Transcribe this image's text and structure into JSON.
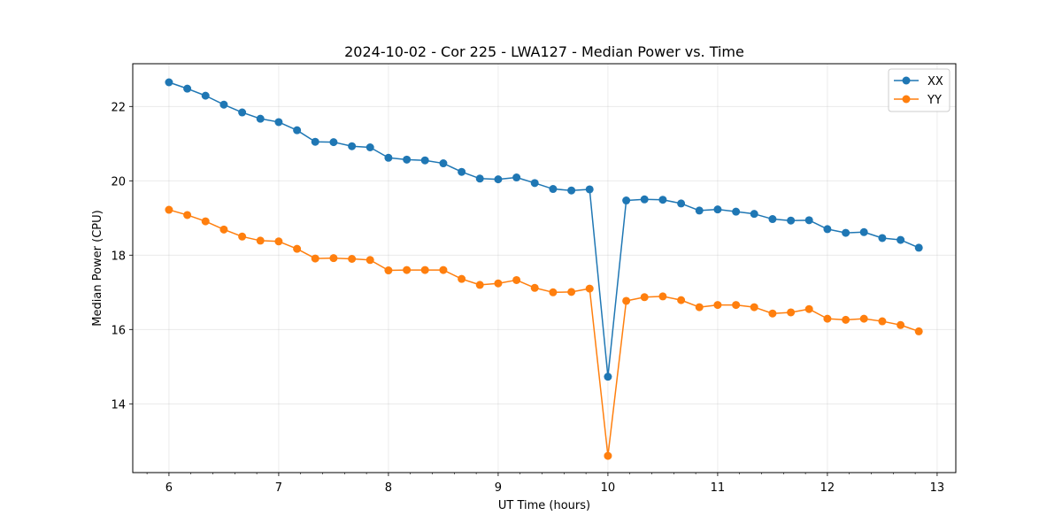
{
  "chart_data": {
    "type": "line",
    "title": "2024-10-02 - Cor 225 - LWA127 - Median Power vs. Time",
    "xlabel": "UT Time (hours)",
    "ylabel": "Median Power (CPU)",
    "xlim": [
      5.67,
      13.17
    ],
    "ylim": [
      12.15,
      23.15
    ],
    "xticks": [
      6,
      7,
      8,
      9,
      10,
      11,
      12,
      13
    ],
    "xtick_labels": [
      "6",
      "7",
      "8",
      "9",
      "10",
      "11",
      "12",
      "13"
    ],
    "yticks": [
      14,
      16,
      18,
      20,
      22
    ],
    "ytick_labels": [
      "14",
      "16",
      "18",
      "20",
      "22"
    ],
    "minor_xtick_step": 0.2,
    "grid": true,
    "legend_position": "top-right",
    "x": [
      6.0,
      6.167,
      6.333,
      6.5,
      6.667,
      6.833,
      7.0,
      7.167,
      7.333,
      7.5,
      7.667,
      7.833,
      8.0,
      8.167,
      8.333,
      8.5,
      8.667,
      8.833,
      9.0,
      9.167,
      9.333,
      9.5,
      9.667,
      9.833,
      10.0,
      10.167,
      10.333,
      10.5,
      10.667,
      10.833,
      11.0,
      11.167,
      11.333,
      11.5,
      11.667,
      11.833,
      12.0,
      12.167,
      12.333,
      12.5,
      12.667,
      12.833
    ],
    "series": [
      {
        "name": "XX",
        "color": "#1f77b4",
        "values": [
          22.65,
          22.48,
          22.29,
          22.05,
          21.84,
          21.67,
          21.58,
          21.36,
          21.05,
          21.04,
          20.93,
          20.9,
          20.62,
          20.57,
          20.55,
          20.47,
          20.24,
          20.06,
          20.04,
          20.09,
          19.94,
          19.78,
          19.74,
          19.77,
          14.73,
          19.47,
          19.5,
          19.49,
          19.39,
          19.2,
          19.23,
          19.17,
          19.11,
          18.97,
          18.93,
          18.94,
          18.7,
          18.6,
          18.62,
          18.46,
          18.41,
          18.2
        ]
      },
      {
        "name": "YY",
        "color": "#ff7f0e",
        "values": [
          19.22,
          19.08,
          18.91,
          18.69,
          18.5,
          18.39,
          18.37,
          18.17,
          17.91,
          17.92,
          17.9,
          17.87,
          17.59,
          17.6,
          17.6,
          17.6,
          17.36,
          17.2,
          17.24,
          17.33,
          17.12,
          17.0,
          17.01,
          17.1,
          12.6,
          16.77,
          16.87,
          16.89,
          16.79,
          16.6,
          16.66,
          16.66,
          16.6,
          16.43,
          16.46,
          16.55,
          16.29,
          16.26,
          16.29,
          16.22,
          16.12,
          15.95
        ]
      }
    ]
  }
}
